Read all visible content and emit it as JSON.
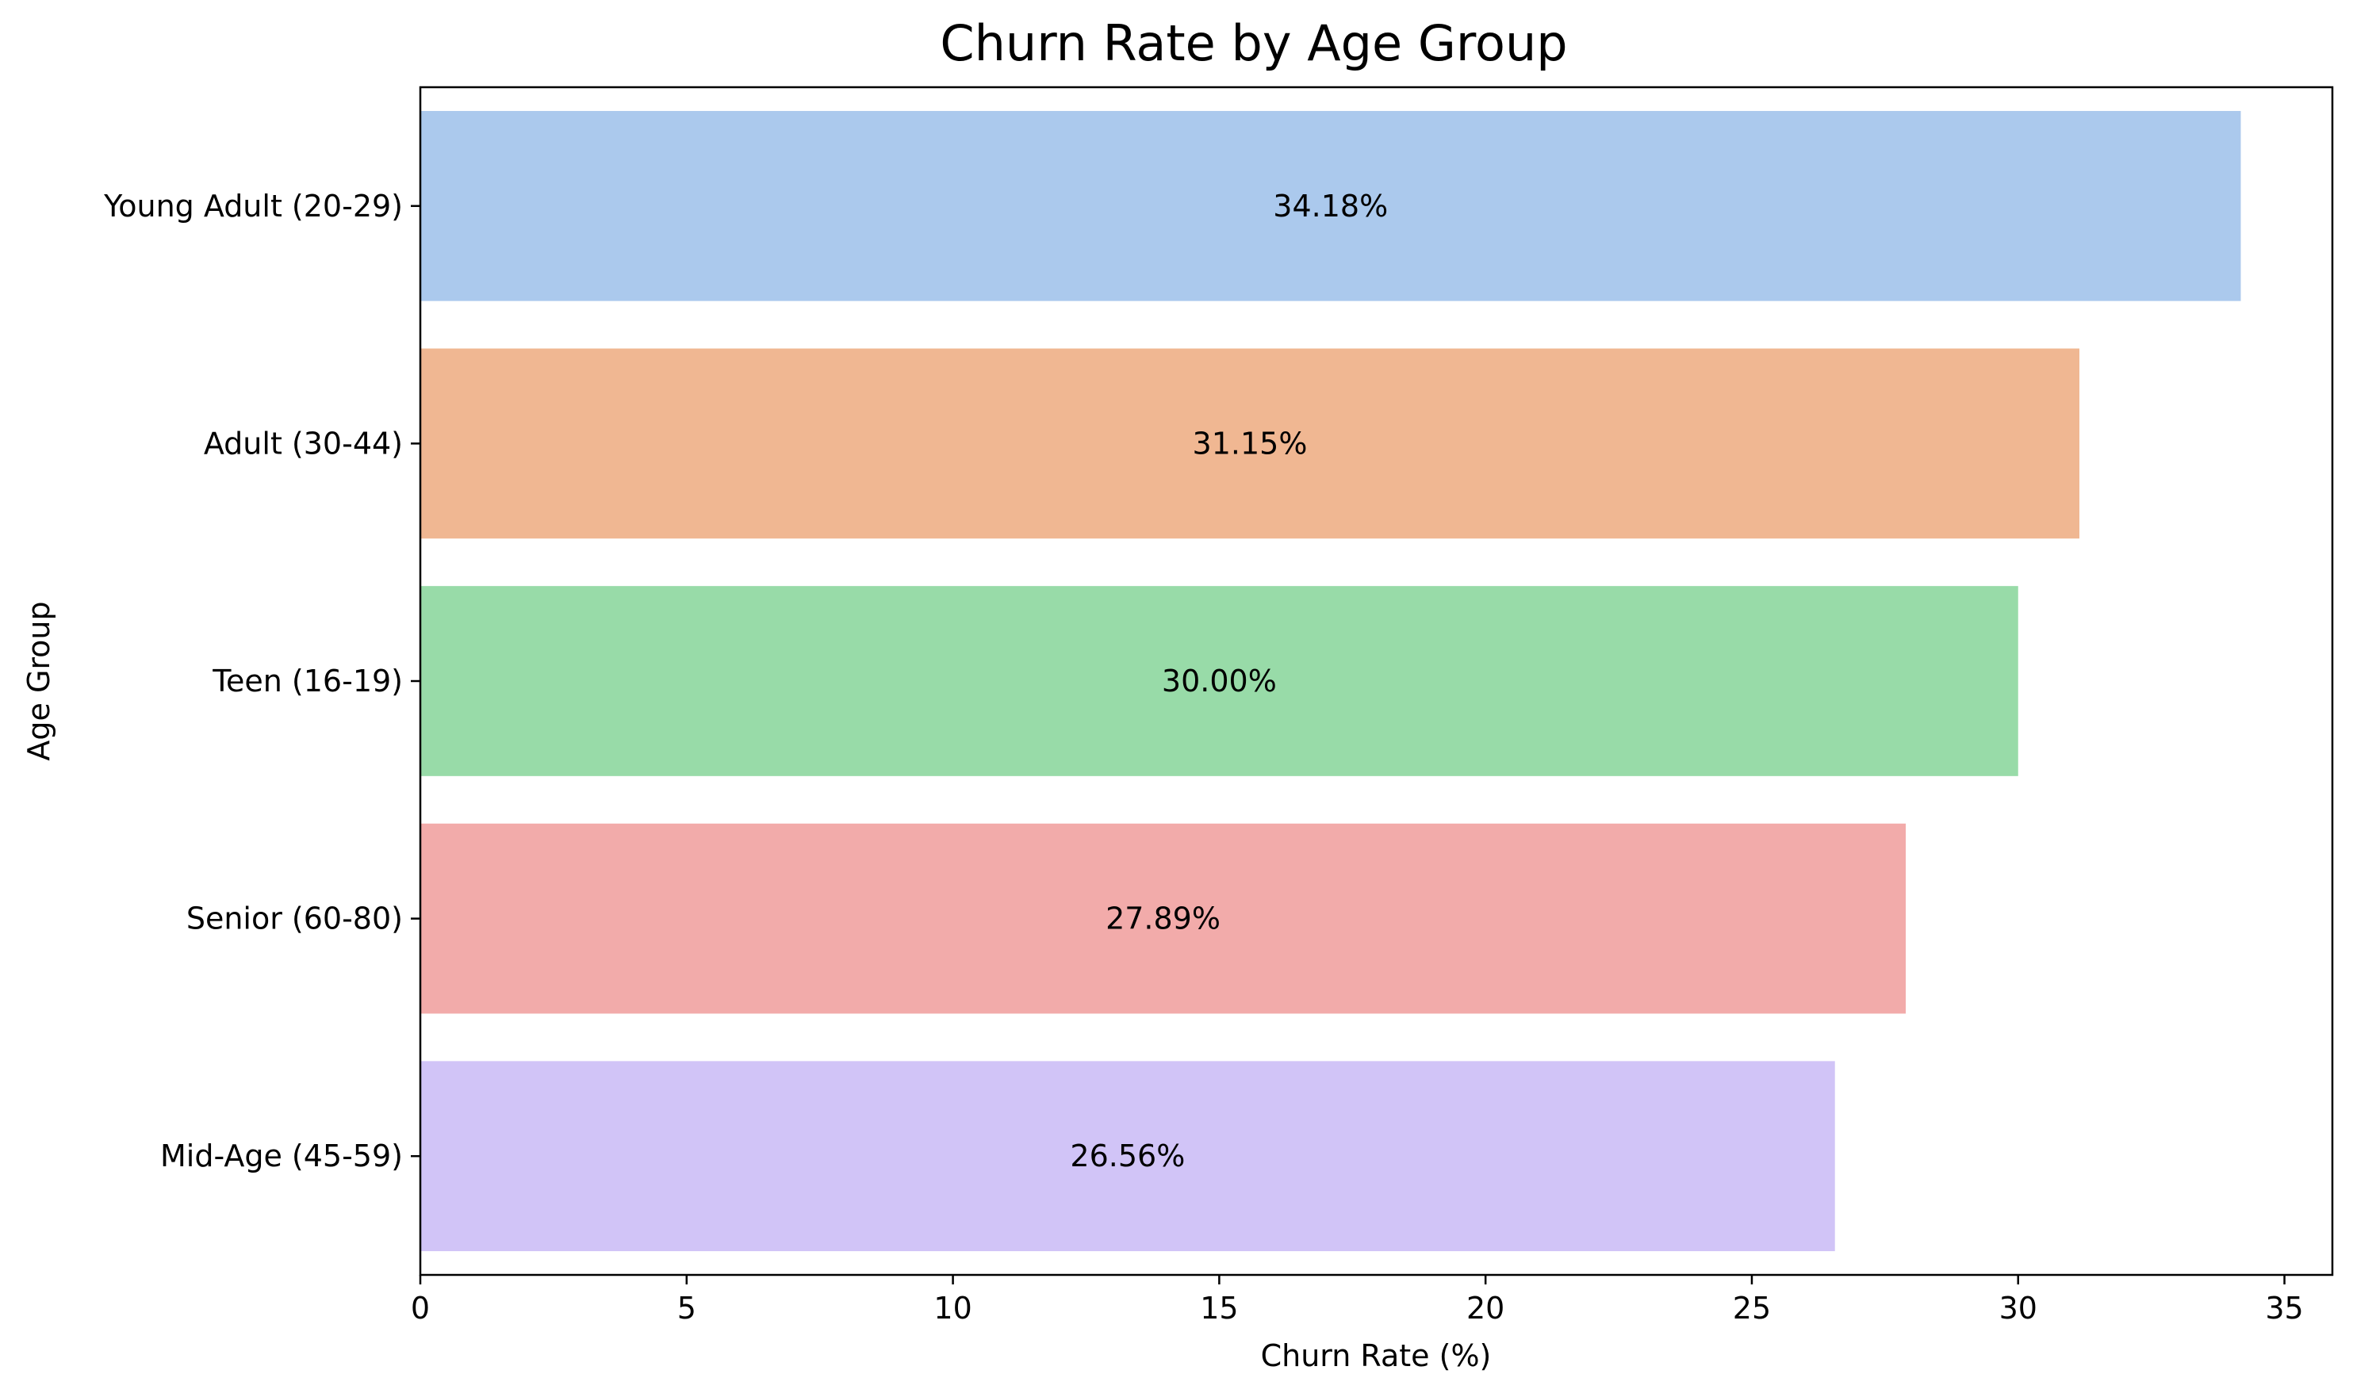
{
  "chart_data": {
    "type": "bar",
    "orientation": "horizontal",
    "title": "Churn Rate by Age Group",
    "xlabel": "Churn Rate (%)",
    "ylabel": "Age Group",
    "categories": [
      "Young Adult (20-29)",
      "Adult (30-44)",
      "Teen (16-19)",
      "Senior (60-80)",
      "Mid-Age (45-59)"
    ],
    "values": [
      34.18,
      31.15,
      30.0,
      27.89,
      26.56
    ],
    "data_labels": [
      "34.18%",
      "31.15%",
      "30.00%",
      "27.89%",
      "26.56%"
    ],
    "colors": [
      "#abc9ed",
      "#f0b792",
      "#98dba8",
      "#f2abaa",
      "#d1c4f7"
    ],
    "xlim": [
      0,
      35.9
    ],
    "xticks": [
      0,
      5,
      10,
      15,
      20,
      25,
      30,
      35
    ],
    "grid": false,
    "legend": "none"
  }
}
